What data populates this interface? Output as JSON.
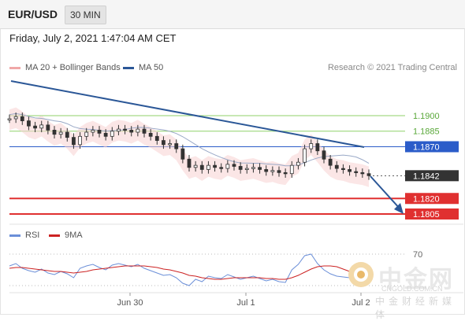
{
  "header": {
    "symbol": "EUR/USD",
    "timeframe": "30 MIN",
    "datetime": "Friday, July 2, 2021 1:47:04 AM CET"
  },
  "legend": {
    "ma20_label": "MA 20 + Bollinger Bands",
    "ma50_label": "MA 50",
    "copyright": "Research © 2021 Trading Central"
  },
  "rsi_legend": {
    "rsi_label": "RSI",
    "ma_label": "9MA"
  },
  "watermark": {
    "brand": "中金网",
    "url": "CNGOLD.COM.CN",
    "sub": "中金财经新媒体"
  },
  "colors": {
    "ma20": "#f0a8a8",
    "ma50": "#2b5797",
    "support": "#e03030",
    "resistance": "#8fd16a",
    "pivot": "#2b5cc9",
    "current": "#333333",
    "rsi": "#6b8fd8",
    "rsi_ma": "#cc2222"
  },
  "chart_data": {
    "type": "line",
    "series": [
      {
        "name": "EUR/USD",
        "values": [
          1.1897,
          1.1899,
          1.1895,
          1.189,
          1.1888,
          1.1891,
          1.1886,
          1.1882,
          1.1884,
          1.1879,
          1.1872,
          1.188,
          1.1884,
          1.1886,
          1.1883,
          1.188,
          1.1885,
          1.1887,
          1.1886,
          1.1884,
          1.1887,
          1.1883,
          1.188,
          1.1876,
          1.1872,
          1.1873,
          1.1868,
          1.1858,
          1.185,
          1.1852,
          1.1848,
          1.1852,
          1.185,
          1.1849,
          1.1853,
          1.1851,
          1.1848,
          1.1849,
          1.185,
          1.1848,
          1.1846,
          1.1847,
          1.1845,
          1.1844,
          1.1852,
          1.1855,
          1.1868,
          1.1873,
          1.1866,
          1.1858,
          1.1852,
          1.1849,
          1.1848,
          1.1846,
          1.1845,
          1.1844,
          1.1842
        ]
      }
    ],
    "levels": [
      {
        "label": "1.1900",
        "value": 1.19,
        "kind": "resistance"
      },
      {
        "label": "1.1885",
        "value": 1.1885,
        "kind": "resistance"
      },
      {
        "label": "1.1870",
        "value": 1.187,
        "kind": "pivot"
      },
      {
        "label": "1.1842",
        "value": 1.1842,
        "kind": "current"
      },
      {
        "label": "1.1820",
        "value": 1.182,
        "kind": "support"
      },
      {
        "label": "1.1805",
        "value": 1.1805,
        "kind": "support"
      }
    ],
    "x_ticks": [
      "Jun 30",
      "Jul 1",
      "Jul 2"
    ],
    "rsi": {
      "level_label": "70",
      "values": [
        55,
        58,
        52,
        49,
        47,
        51,
        46,
        44,
        48,
        45,
        40,
        52,
        55,
        57,
        53,
        50,
        56,
        58,
        56,
        54,
        57,
        52,
        49,
        46,
        43,
        44,
        40,
        33,
        30,
        38,
        35,
        42,
        40,
        39,
        44,
        41,
        38,
        40,
        42,
        39,
        36,
        38,
        35,
        34,
        50,
        57,
        68,
        70,
        58,
        50,
        45,
        42,
        41,
        40,
        39,
        38,
        37
      ],
      "ma_values": [
        52,
        53,
        53,
        52,
        51,
        50,
        49,
        48,
        48,
        47,
        46,
        47,
        48,
        50,
        51,
        52,
        53,
        54,
        55,
        55,
        55,
        55,
        54,
        53,
        51,
        50,
        48,
        46,
        43,
        42,
        40,
        39,
        38,
        38,
        39,
        40,
        40,
        40,
        40,
        40,
        39,
        39,
        38,
        38,
        40,
        43,
        47,
        51,
        54,
        55,
        55,
        54,
        51,
        48,
        45,
        43,
        41
      ]
    }
  }
}
